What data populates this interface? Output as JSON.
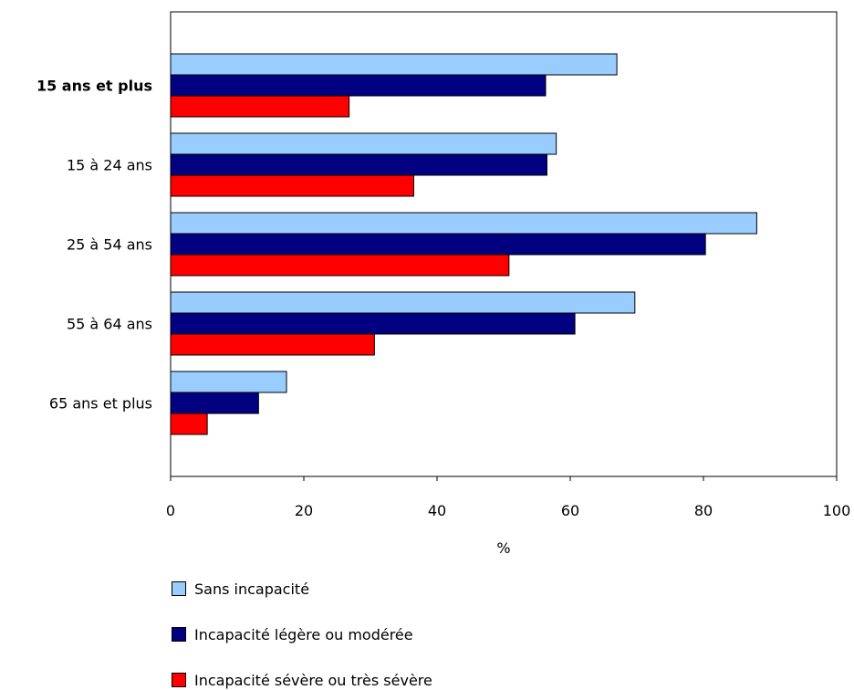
{
  "chart_data": {
    "type": "bar",
    "orientation": "horizontal",
    "categories": [
      "15 ans et plus",
      "15 à 24 ans",
      "25 à 54 ans",
      "55 à 64 ans",
      "65 ans et plus"
    ],
    "bold_categories": [
      "15 ans et plus"
    ],
    "series": [
      {
        "name": "Sans incapacité",
        "color": "#99ccff",
        "values": [
          67.0,
          57.9,
          88.0,
          69.7,
          17.4
        ]
      },
      {
        "name": "Incapacité légère ou modérée",
        "color": "#000080",
        "values": [
          56.3,
          56.5,
          80.3,
          60.7,
          13.2
        ]
      },
      {
        "name": "Incapacité sévère ou très sévère",
        "color": "#ff0000",
        "values": [
          26.8,
          36.5,
          50.8,
          30.6,
          5.5
        ]
      }
    ],
    "xlabel": "%",
    "xlim": [
      0,
      100
    ],
    "xticks": [
      0,
      20,
      40,
      60,
      80,
      100
    ],
    "grid": false,
    "legend_position": "bottom-left"
  }
}
